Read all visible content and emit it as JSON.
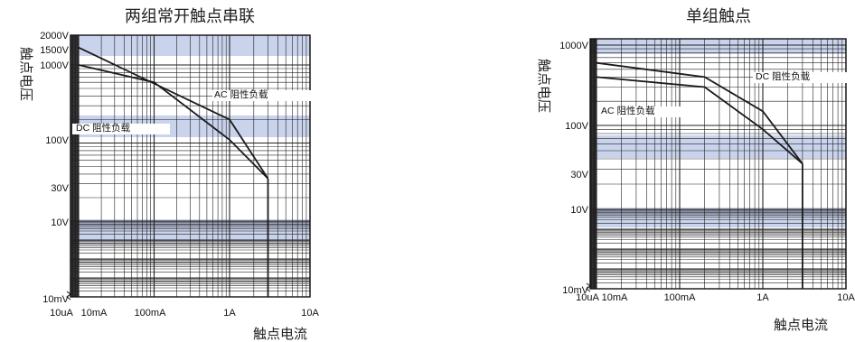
{
  "chart_data": [
    {
      "type": "line",
      "title": "两组常开触点串联",
      "xlabel": "触点电流",
      "ylabel": "触点电压",
      "x_tick_labels": [
        "10uA",
        "10mA",
        "100mA",
        "1A",
        "10A"
      ],
      "y_tick_labels": [
        "2000V",
        "1500V",
        "1000V",
        "100V",
        "30V",
        "10V",
        "10mV"
      ],
      "xscale": "log",
      "yscale": "log",
      "xlim": [
        "10uA",
        "10A"
      ],
      "ylim": [
        "10mV",
        "2000V"
      ],
      "grid": true,
      "series": [
        {
          "name": "AC 阻性负载",
          "points": [
            [
              "10mA",
              "1500V"
            ],
            [
              "1A",
              "200V"
            ],
            [
              "3A",
              "35V"
            ]
          ]
        },
        {
          "name": "DC 阻性负载",
          "points": [
            [
              "10mA",
              "1000V"
            ],
            [
              "100mA",
              "600V"
            ],
            [
              "1A",
              "110V"
            ],
            [
              "3A",
              "35V"
            ]
          ]
        }
      ]
    },
    {
      "type": "line",
      "title": "单组触点",
      "xlabel": "触点电流",
      "ylabel": "触点电压",
      "x_tick_labels": [
        "10uA",
        "10mA",
        "100mA",
        "1A",
        "10A"
      ],
      "y_tick_labels": [
        "1000V",
        "100V",
        "30V",
        "10V",
        "10mV"
      ],
      "xscale": "log",
      "yscale": "log",
      "xlim": [
        "10uA",
        "10A"
      ],
      "ylim": [
        "10mV",
        "1000V"
      ],
      "grid": true,
      "series": [
        {
          "name": "DC 阻性负载",
          "points": [
            [
              "10mA",
              "600V"
            ],
            [
              "200mA",
              "400V"
            ],
            [
              "1A",
              "150V"
            ],
            [
              "3A",
              "35V"
            ]
          ]
        },
        {
          "name": "AC 阻性负载",
          "points": [
            [
              "10mA",
              "400V"
            ],
            [
              "200mA",
              "300V"
            ],
            [
              "1A",
              "90V"
            ],
            [
              "3A",
              "35V"
            ]
          ]
        }
      ]
    }
  ]
}
